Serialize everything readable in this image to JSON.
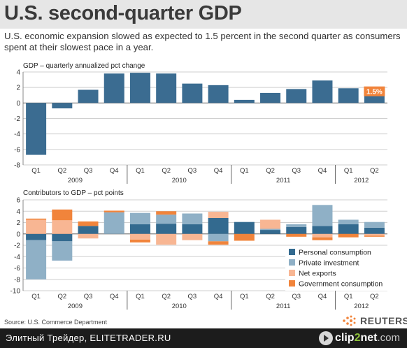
{
  "title": "U.S. second-quarter GDP",
  "subtitle": "U.S. economic expansion slowed as expected to 1.5 percent in the second quarter as consumers spent at their slowest pace in a year.",
  "source": "Source: U.S. Commerce Department",
  "brand": "REUTERS",
  "footer": {
    "left_text": "Элитный Трейдер, ELITETRADER.RU",
    "clip_prefix": "clip",
    "clip_two": "2",
    "clip_suffix": "net",
    "clip_domain": ".com"
  },
  "colors": {
    "gdp_bar": "#3b6c91",
    "personal_consumption": "#336a8f",
    "private_investment": "#8fb0c6",
    "net_exports": "#f8b693",
    "government_consumption": "#f1843b",
    "highlight": "#f1843b",
    "grid": "#cfcfcf",
    "year_line": "#666666"
  },
  "chart_data": [
    {
      "type": "bar",
      "title": "GDP – quarterly annualized pct change",
      "categories": [
        "Q1",
        "Q2",
        "Q3",
        "Q4",
        "Q1",
        "Q2",
        "Q3",
        "Q4",
        "Q1",
        "Q2",
        "Q3",
        "Q4",
        "Q1",
        "Q2"
      ],
      "years": [
        {
          "label": "2009",
          "quarters": 4
        },
        {
          "label": "2010",
          "quarters": 4
        },
        {
          "label": "2011",
          "quarters": 4
        },
        {
          "label": "2012",
          "quarters": 2
        }
      ],
      "values": [
        -6.7,
        -0.7,
        1.7,
        3.8,
        3.9,
        3.8,
        2.5,
        2.3,
        0.4,
        1.3,
        1.8,
        2.9,
        1.9,
        1.5
      ],
      "highlight_label": "1.5%",
      "highlight_index": 13,
      "ylim": [
        -8,
        4
      ],
      "yticks": [
        -8,
        -6,
        -4,
        -2,
        0,
        2,
        4
      ],
      "grid": true
    },
    {
      "type": "bar",
      "stacked": true,
      "title": "Contributors to GDP – pct points",
      "categories": [
        "Q1",
        "Q2",
        "Q3",
        "Q4",
        "Q1",
        "Q2",
        "Q3",
        "Q4",
        "Q1",
        "Q2",
        "Q3",
        "Q4",
        "Q1",
        "Q2"
      ],
      "years": [
        {
          "label": "2009",
          "quarters": 4
        },
        {
          "label": "2010",
          "quarters": 4
        },
        {
          "label": "2011",
          "quarters": 4
        },
        {
          "label": "2012",
          "quarters": 2
        }
      ],
      "series": [
        {
          "name": "Personal consumption",
          "values": [
            -1.1,
            -1.3,
            1.4,
            0.0,
            1.7,
            1.8,
            1.7,
            2.8,
            2.1,
            0.7,
            1.2,
            1.4,
            1.7,
            1.1
          ]
        },
        {
          "name": "Private investment",
          "values": [
            -6.9,
            -3.4,
            0.0,
            3.8,
            2.0,
            1.6,
            1.9,
            -1.3,
            0.0,
            0.2,
            0.5,
            3.7,
            0.8,
            1.0
          ]
        },
        {
          "name": "Net exports",
          "values": [
            2.5,
            2.4,
            -0.8,
            0.0,
            -1.0,
            -1.9,
            -1.1,
            1.1,
            0.0,
            1.6,
            0.0,
            -0.6,
            0.0,
            -0.3
          ]
        },
        {
          "name": "Government consumption",
          "values": [
            0.2,
            1.9,
            0.8,
            0.3,
            -0.5,
            0.6,
            0.0,
            -0.6,
            -1.2,
            0.0,
            -0.5,
            -0.5,
            -0.6,
            -0.2
          ]
        }
      ],
      "ylim": [
        -10,
        6
      ],
      "yticks": [
        -10,
        -8,
        -6,
        -4,
        -2,
        0,
        2,
        4,
        6
      ],
      "legend": "bottom-right",
      "grid": true
    }
  ]
}
